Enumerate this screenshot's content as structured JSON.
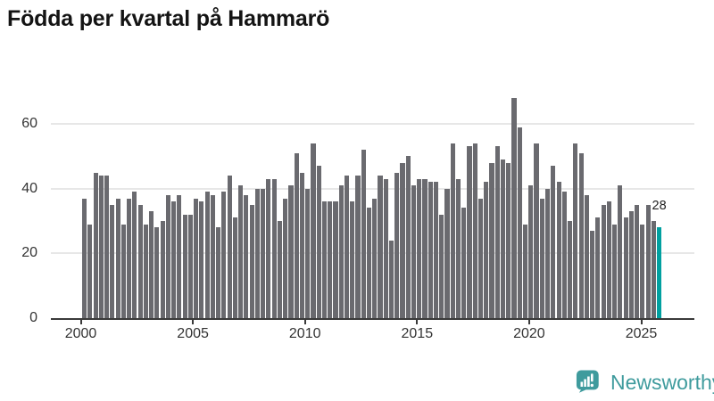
{
  "title": "Födda per kvartal på Hammarö",
  "highlight": {
    "value_label": "28",
    "quarter": "2025-Q4"
  },
  "logo": {
    "text": "Newsworthy"
  },
  "colors": {
    "bar": "#6a6a6f",
    "highlight_bar": "#00a0a0",
    "grid": "#e7e7e7",
    "axis": "#3a3a3a",
    "tick_label": "#333333",
    "title": "#141414",
    "logo_teal": "#3f9b9d"
  },
  "chart_data": {
    "type": "bar",
    "title": "Födda per kvartal på Hammarö",
    "unit": "births per quarter",
    "start_quarter": "2000-Q1",
    "end_quarter": "2025-Q4",
    "quarters_per_year": 4,
    "start_year": 2000,
    "x_tick_labels": [
      "2000",
      "2005",
      "2010",
      "2015",
      "2020",
      "2025"
    ],
    "y_ticks": [
      0,
      20,
      40,
      60
    ],
    "ylim": [
      0,
      70
    ],
    "grid": "horizontal",
    "legend": "none",
    "values": [
      37,
      29,
      45,
      44,
      44,
      35,
      37,
      29,
      37,
      39,
      35,
      29,
      33,
      28,
      30,
      38,
      36,
      38,
      32,
      32,
      37,
      36,
      39,
      38,
      28,
      39,
      44,
      31,
      41,
      38,
      35,
      40,
      40,
      43,
      43,
      30,
      37,
      41,
      51,
      45,
      40,
      54,
      47,
      36,
      36,
      36,
      41,
      44,
      36,
      44,
      52,
      34,
      37,
      44,
      43,
      24,
      45,
      48,
      50,
      41,
      43,
      43,
      42,
      42,
      32,
      40,
      54,
      43,
      34,
      53,
      54,
      37,
      42,
      48,
      53,
      49,
      48,
      68,
      59,
      29,
      41,
      54,
      37,
      40,
      47,
      42,
      39,
      30,
      54,
      51,
      38,
      27,
      31,
      35,
      36,
      29,
      41,
      31,
      33,
      35,
      29,
      35,
      30,
      28
    ],
    "highlight_index": 103,
    "highlight_value_label": "28"
  }
}
